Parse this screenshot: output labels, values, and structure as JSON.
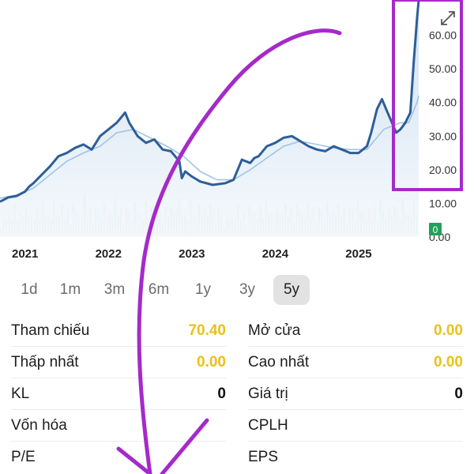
{
  "chart_data": {
    "type": "line",
    "x_labels": [
      "2021",
      "2022",
      "2023",
      "2024",
      "2025"
    ],
    "y_ticks": [
      "60.00",
      "50.00",
      "40.00",
      "30.00",
      "20.00",
      "10.00",
      "0.00"
    ],
    "ylim": [
      0,
      70
    ],
    "badge": "0",
    "price": [
      [
        2020.7,
        10.5
      ],
      [
        2020.8,
        11.8
      ],
      [
        2020.9,
        12.2
      ],
      [
        2021.0,
        13.5
      ],
      [
        2021.05,
        15
      ],
      [
        2021.1,
        16
      ],
      [
        2021.2,
        18.5
      ],
      [
        2021.3,
        21
      ],
      [
        2021.4,
        24
      ],
      [
        2021.5,
        25
      ],
      [
        2021.6,
        26.5
      ],
      [
        2021.7,
        27.5
      ],
      [
        2021.8,
        26
      ],
      [
        2021.9,
        30
      ],
      [
        2022.0,
        32
      ],
      [
        2022.1,
        34
      ],
      [
        2022.2,
        37
      ],
      [
        2022.25,
        34
      ],
      [
        2022.35,
        30
      ],
      [
        2022.45,
        28
      ],
      [
        2022.55,
        29
      ],
      [
        2022.65,
        26
      ],
      [
        2022.75,
        25.5
      ],
      [
        2022.85,
        22.5
      ],
      [
        2022.88,
        17.5
      ],
      [
        2022.92,
        19.5
      ],
      [
        2023.0,
        18
      ],
      [
        2023.1,
        16.5
      ],
      [
        2023.25,
        15.5
      ],
      [
        2023.4,
        16
      ],
      [
        2023.5,
        17
      ],
      [
        2023.6,
        23
      ],
      [
        2023.7,
        22
      ],
      [
        2023.75,
        23.5
      ],
      [
        2023.8,
        24
      ],
      [
        2023.9,
        27
      ],
      [
        2024.0,
        28
      ],
      [
        2024.1,
        29.5
      ],
      [
        2024.2,
        30
      ],
      [
        2024.3,
        28.5
      ],
      [
        2024.4,
        27
      ],
      [
        2024.5,
        26
      ],
      [
        2024.6,
        25.5
      ],
      [
        2024.7,
        27
      ],
      [
        2024.8,
        26
      ],
      [
        2024.9,
        25
      ],
      [
        2025.0,
        25
      ],
      [
        2025.1,
        27
      ],
      [
        2025.15,
        31
      ],
      [
        2025.22,
        38
      ],
      [
        2025.28,
        41
      ],
      [
        2025.33,
        38
      ],
      [
        2025.4,
        34
      ],
      [
        2025.45,
        31
      ],
      [
        2025.5,
        32
      ],
      [
        2025.56,
        34
      ],
      [
        2025.62,
        37
      ],
      [
        2025.66,
        52
      ],
      [
        2025.7,
        65
      ],
      [
        2025.72,
        70.4
      ]
    ],
    "ma": [
      [
        2020.7,
        11.5
      ],
      [
        2020.9,
        12.5
      ],
      [
        2021.1,
        14.5
      ],
      [
        2021.3,
        18.5
      ],
      [
        2021.5,
        22.5
      ],
      [
        2021.7,
        25
      ],
      [
        2021.9,
        27
      ],
      [
        2022.1,
        31
      ],
      [
        2022.3,
        32
      ],
      [
        2022.5,
        29.5
      ],
      [
        2022.7,
        27
      ],
      [
        2022.9,
        24
      ],
      [
        2023.1,
        19.5
      ],
      [
        2023.3,
        17
      ],
      [
        2023.5,
        17
      ],
      [
        2023.7,
        20
      ],
      [
        2023.9,
        23.5
      ],
      [
        2024.1,
        27
      ],
      [
        2024.3,
        28.5
      ],
      [
        2024.5,
        27.5
      ],
      [
        2024.7,
        26.5
      ],
      [
        2024.9,
        26
      ],
      [
        2025.1,
        26
      ],
      [
        2025.3,
        32
      ],
      [
        2025.5,
        34
      ],
      [
        2025.6,
        34
      ],
      [
        2025.7,
        40
      ],
      [
        2025.72,
        42
      ]
    ],
    "volume_profile": [
      18,
      34,
      22,
      40,
      28,
      55,
      30,
      44,
      26,
      60,
      35,
      48,
      29,
      52,
      38,
      66,
      31,
      45,
      27,
      58,
      40,
      36,
      70,
      33,
      47,
      25,
      62,
      39,
      43,
      28,
      75,
      36,
      50,
      30,
      57,
      41,
      35,
      64,
      29,
      46,
      33,
      71,
      38,
      49,
      27,
      59,
      42,
      31,
      68,
      37,
      45,
      26,
      61,
      34,
      52,
      30,
      74,
      40,
      36,
      55,
      28,
      63,
      44,
      39,
      80,
      35,
      48,
      29,
      66,
      41,
      33,
      57,
      38,
      47,
      27,
      69,
      43,
      32,
      58,
      36
    ]
  },
  "timeframes": [
    "1d",
    "1m",
    "3m",
    "6m",
    "1y",
    "3y",
    "5y"
  ],
  "active_timeframe": "5y",
  "stats": {
    "ref_label": "Tham chiếu",
    "ref_value": "70.40",
    "open_label": "Mở cửa",
    "open_value": "0.00",
    "low_label": "Thấp nhất",
    "low_value": "0.00",
    "high_label": "Cao nhất",
    "high_value": "0.00",
    "vol_label": "KL",
    "vol_value": "0",
    "val_label": "Giá trị",
    "val_value": "0",
    "mcap_label": "Vốn hóa",
    "shares_label": "CPLH",
    "pe_label": "P/E",
    "eps_label": "EPS"
  },
  "colors": {
    "price_line": "#2e5e98",
    "ma_line": "#9fc4e6",
    "area_fill": "#dfeaf5",
    "badge": "#1fa25b",
    "highlight": "#a52ac9",
    "value_yellow": "#e8c21a"
  }
}
